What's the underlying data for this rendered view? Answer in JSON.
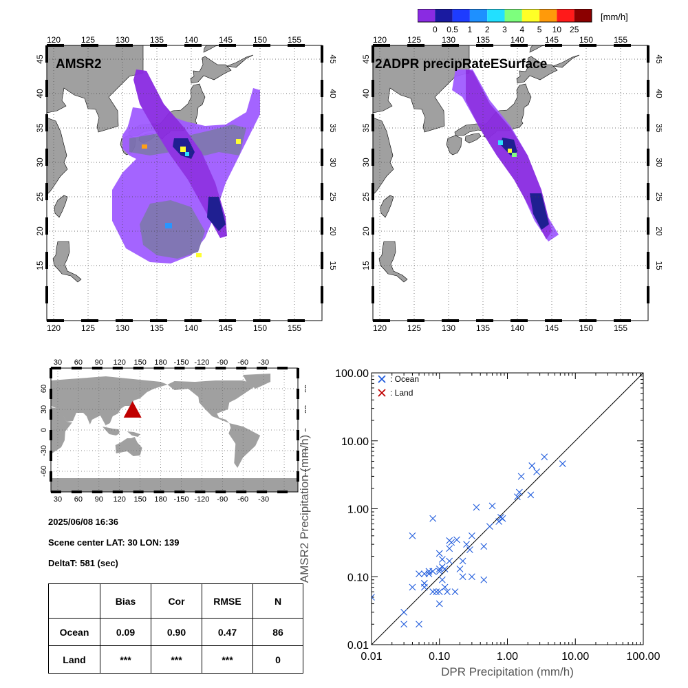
{
  "colorbar": {
    "unit": "[mm/h]",
    "colors": [
      "#8a2be2",
      "#1a1aa0",
      "#1e3cff",
      "#1e90ff",
      "#22e0ff",
      "#7dff7d",
      "#ffff26",
      "#ff9a0a",
      "#ff1a1a",
      "#8b0000"
    ],
    "labels": [
      "0",
      "0.5",
      "1",
      "2",
      "3",
      "4",
      "5",
      "10",
      "25"
    ]
  },
  "maps": {
    "lon_ticks": [
      "120",
      "125",
      "130",
      "135",
      "140",
      "145",
      "150",
      "155"
    ],
    "lat_ticks": [
      "15",
      "20",
      "25",
      "30",
      "35",
      "40",
      "45"
    ],
    "amsr2_title": "AMSR2",
    "dpr_title": "2ADPR precipRateESurface"
  },
  "world": {
    "top_ticks": [
      "30",
      "60",
      "90",
      "120",
      "150",
      "180",
      "-150",
      "-120",
      "-90",
      "-60",
      "-30"
    ],
    "lat_ticks": [
      "60",
      "30",
      "0",
      "-30",
      "-60"
    ],
    "marker": {
      "lon": 139,
      "lat": 30
    }
  },
  "info": {
    "datetime": "2025/06/08 16:36",
    "scene_center": "Scene center LAT: 30   LON: 139",
    "delta_t": "DeltaT:  581 (sec)"
  },
  "stats": {
    "headers": [
      "",
      "Bias",
      "Cor",
      "RMSE",
      "N"
    ],
    "rows": [
      {
        "name": "Ocean",
        "bias": "0.09",
        "cor": "0.90",
        "rmse": "0.47",
        "n": "86"
      },
      {
        "name": "Land",
        "bias": "***",
        "cor": "***",
        "rmse": "***",
        "n": "0"
      }
    ]
  },
  "chart_data": {
    "type": "scatter",
    "xlabel": "DPR Precipitation (mm/h)",
    "ylabel": "AMSR2 Precipitation (mm/h)",
    "xscale": "log",
    "yscale": "log",
    "xlim": [
      0.01,
      100
    ],
    "ylim": [
      0.01,
      100
    ],
    "tick_labels": [
      "0.01",
      "0.10",
      "1.00",
      "10.00",
      "100.00"
    ],
    "tick_values": [
      0.01,
      0.1,
      1,
      10,
      100
    ],
    "reference_line": "y = x",
    "legend_position": "top-left",
    "series": [
      {
        "name": ": Ocean",
        "color": "#1e5adc",
        "points": [
          [
            0.01,
            0.05
          ],
          [
            0.02,
            0.009
          ],
          [
            0.03,
            0.009
          ],
          [
            0.04,
            0.009
          ],
          [
            0.03,
            0.02
          ],
          [
            0.03,
            0.03
          ],
          [
            0.05,
            0.02
          ],
          [
            0.04,
            0.07
          ],
          [
            0.05,
            0.11
          ],
          [
            0.06,
            0.08
          ],
          [
            0.06,
            0.07
          ],
          [
            0.07,
            0.12
          ],
          [
            0.07,
            0.11
          ],
          [
            0.08,
            0.06
          ],
          [
            0.09,
            0.06
          ],
          [
            0.1,
            0.04
          ],
          [
            0.1,
            0.06
          ],
          [
            0.1,
            0.12
          ],
          [
            0.1,
            0.13
          ],
          [
            0.11,
            0.14
          ],
          [
            0.11,
            0.09
          ],
          [
            0.12,
            0.07
          ],
          [
            0.13,
            0.06
          ],
          [
            0.14,
            0.17
          ],
          [
            0.14,
            0.26
          ],
          [
            0.15,
            0.32
          ],
          [
            0.14,
            0.34
          ],
          [
            0.1,
            0.22
          ],
          [
            0.11,
            0.18
          ],
          [
            0.17,
            0.06
          ],
          [
            0.2,
            0.13
          ],
          [
            0.22,
            0.1
          ],
          [
            0.22,
            0.17
          ],
          [
            0.25,
            0.3
          ],
          [
            0.28,
            0.25
          ],
          [
            0.3,
            0.4
          ],
          [
            0.3,
            0.1
          ],
          [
            0.35,
            1.05
          ],
          [
            0.45,
            0.09
          ],
          [
            0.45,
            0.28
          ],
          [
            0.55,
            0.55
          ],
          [
            0.6,
            1.1
          ],
          [
            0.75,
            0.65
          ],
          [
            0.8,
            0.75
          ],
          [
            0.85,
            0.72
          ],
          [
            1.4,
            1.5
          ],
          [
            1.5,
            1.75
          ],
          [
            1.6,
            3.0
          ],
          [
            2.2,
            1.6
          ],
          [
            2.3,
            4.3
          ],
          [
            2.7,
            3.5
          ],
          [
            3.5,
            5.8
          ],
          [
            6.5,
            4.6
          ],
          [
            0.04,
            0.4
          ],
          [
            0.08,
            0.72
          ],
          [
            0.06,
            0.11
          ],
          [
            0.08,
            0.12
          ],
          [
            0.12,
            0.13
          ],
          [
            0.18,
            0.35
          ]
        ]
      },
      {
        "name": ": Land",
        "color": "#c00000",
        "points": []
      }
    ]
  }
}
